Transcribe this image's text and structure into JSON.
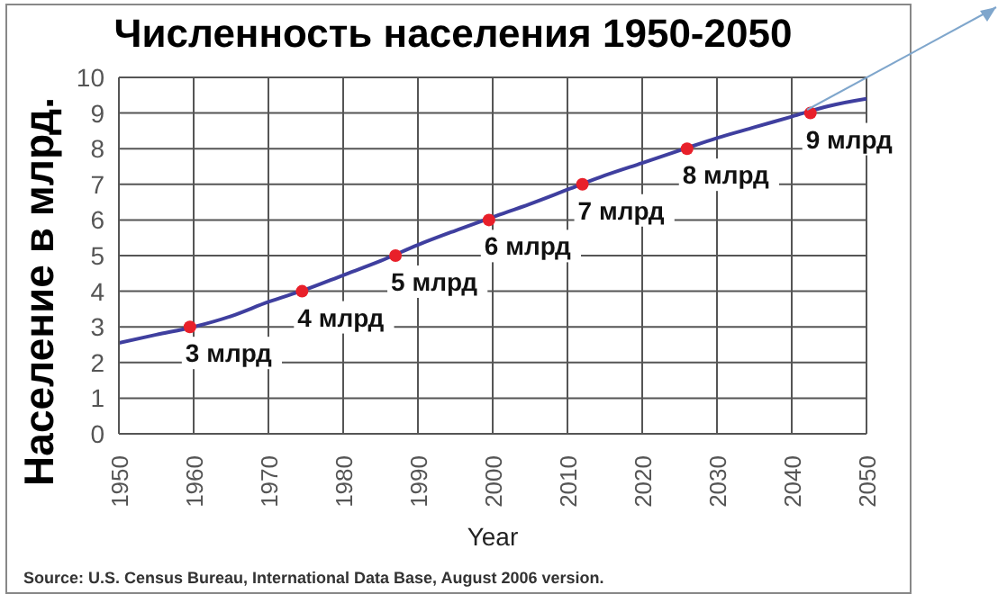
{
  "chart_data": {
    "type": "line",
    "title": "Численность населения 1950-2050",
    "xlabel": "Year",
    "ylabel": "Население в млрд.",
    "annotations": [
      "Source: U.S. Census Bureau, International Data Base, August 2006 version."
    ],
    "xlim": [
      1950,
      2050
    ],
    "xticks": [
      1950,
      1960,
      1970,
      1980,
      1990,
      2000,
      2010,
      2020,
      2030,
      2040,
      2050
    ],
    "ylim": [
      0,
      10
    ],
    "yticks": [
      0,
      1,
      2,
      3,
      4,
      5,
      6,
      7,
      8,
      9,
      10
    ],
    "grid": true,
    "series": [
      {
        "color": "#3f3f9f",
        "x": [
          1950,
          1955,
          1960,
          1965,
          1970,
          1975,
          1980,
          1985,
          1990,
          1995,
          2000,
          2005,
          2010,
          2015,
          2020,
          2025,
          2030,
          2035,
          2040,
          2045,
          2050
        ],
        "values": [
          2.55,
          2.78,
          3.0,
          3.3,
          3.7,
          4.05,
          4.45,
          4.85,
          5.3,
          5.7,
          6.08,
          6.45,
          6.85,
          7.25,
          7.6,
          7.95,
          8.3,
          8.6,
          8.9,
          9.2,
          9.4
        ]
      },
      {
        "type": "scatter",
        "color": "#e8202a",
        "x": [
          1959.5,
          1974.5,
          1987,
          1999.5,
          2012,
          2026,
          2042.5
        ],
        "values": [
          3,
          4,
          5,
          6,
          7,
          8,
          9
        ],
        "value_labels": [
          "3 млрд",
          "4 млрд",
          "5 млрд",
          "6 млрд",
          "7 млрд",
          "8 млрд",
          "9 млрд"
        ]
      }
    ]
  }
}
